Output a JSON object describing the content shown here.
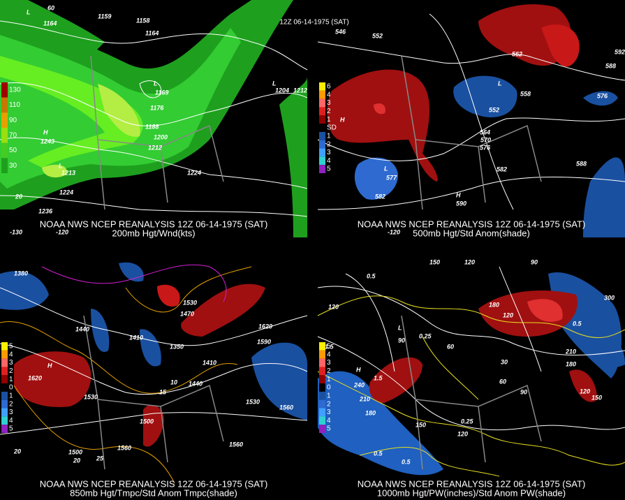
{
  "title": "12Z 06-14-1975 (SAT)",
  "panels": [
    {
      "caption": [
        "NOAA NWS NCEP REANALYSIS 12Z 06-14-1975 (SAT)",
        "200mb Hgt/Wnd(kts)"
      ],
      "legend": [
        "130",
        "110",
        "90",
        "70",
        "50",
        "30"
      ],
      "labels": [
        "1164",
        "1159",
        "1158",
        "1164",
        "1169",
        "1176",
        "1188",
        "1200",
        "1212",
        "1224",
        "1224",
        "1236",
        "1243",
        "1213",
        "1204",
        "1212",
        "60",
        "20",
        "-120",
        "-130",
        "L",
        "L",
        "H",
        "L",
        "L"
      ]
    },
    {
      "caption": [
        "NOAA NWS NCEP REANALYSIS 12Z 06-14-1975 (SAT)",
        "500mb Hgt/Std Anom(shade)"
      ],
      "legend": [
        "6",
        "4",
        "3",
        "2",
        "1",
        "SD",
        "1",
        "2",
        "3",
        "4",
        "5"
      ],
      "labels": [
        "546",
        "552",
        "552",
        "558",
        "564",
        "570",
        "576",
        "582",
        "588",
        "588",
        "576",
        "582",
        "577",
        "590",
        "562",
        "592",
        "L",
        "H",
        "H",
        "L",
        "-120"
      ]
    },
    {
      "caption": [
        "NOAA NWS NCEP REANALYSIS 12Z 06-14-1975 (SAT)",
        "850mb Hgt/Tmpc/Std Anom Tmpc(shade)"
      ],
      "legend": [
        "5",
        "4",
        "3",
        "2",
        "1",
        "0",
        "1",
        "2",
        "3",
        "4",
        "5"
      ],
      "labels": [
        "1380",
        "1440",
        "1410",
        "1470",
        "1530",
        "1350",
        "1410",
        "1440",
        "1590",
        "1620",
        "1560",
        "1530",
        "1530",
        "1500",
        "1620",
        "1560",
        "1500",
        "1560",
        "10",
        "15",
        "20",
        "25",
        "H",
        "20"
      ]
    },
    {
      "caption": [
        "NOAA NWS NCEP REANALYSIS 12Z 06-14-1975 (SAT)",
        "1000mb Hgt/PW(inches)/Std Anom PW(shade)"
      ],
      "legend": [
        "5",
        "4",
        "3",
        "2",
        "1",
        "0",
        "1",
        "2",
        "3",
        "4",
        "5"
      ],
      "labels": [
        "150",
        "120",
        "90",
        "120",
        "90",
        "60",
        "0.25",
        "0.5",
        "180",
        "120",
        "1.5",
        "240",
        "210",
        "180",
        "1.5",
        "0.5",
        "0.5",
        "0.25",
        "150",
        "120",
        "30",
        "60",
        "90",
        "210",
        "180",
        "120",
        "150",
        "300",
        "0.5",
        "H",
        "L"
      ]
    }
  ]
}
